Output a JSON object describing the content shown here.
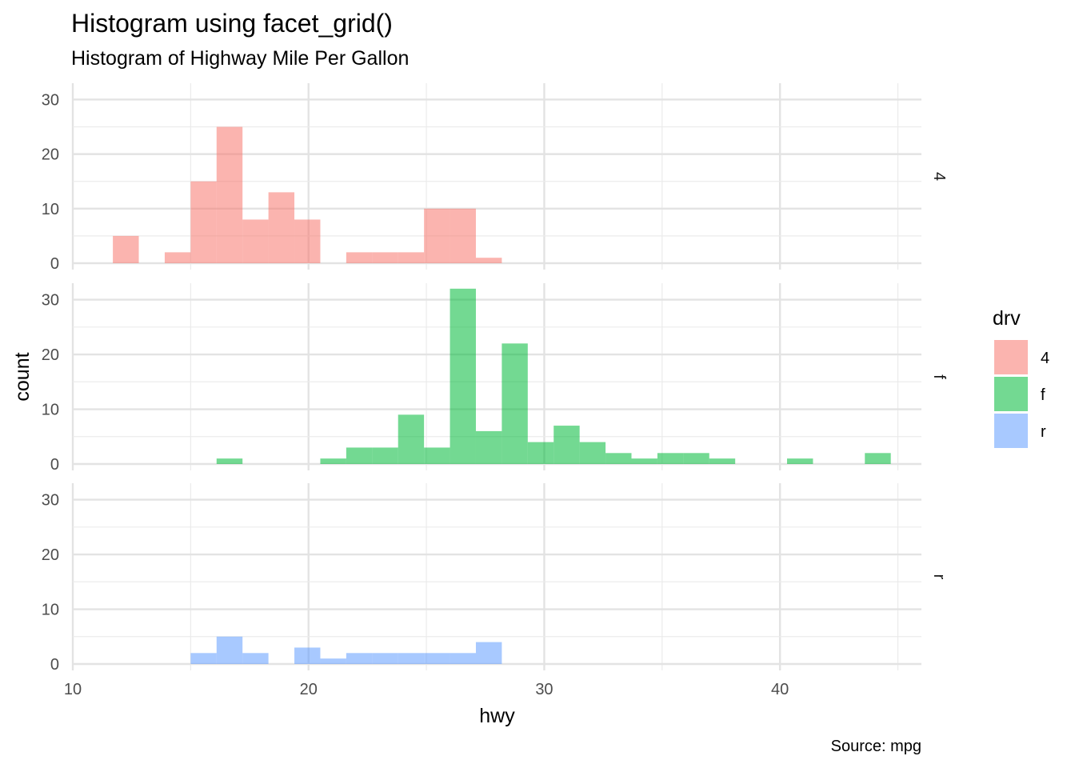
{
  "chart_data": {
    "type": "bar",
    "chart_kind": "histogram",
    "title": "Histogram using facet_grid()",
    "subtitle": "Histogram of Highway Mile Per Gallon",
    "caption": "Source: mpg",
    "xlabel": "hwy",
    "ylabel": "count",
    "xlim": [
      10,
      46
    ],
    "ylim": [
      0,
      33
    ],
    "x_ticks": [
      10,
      20,
      30,
      40
    ],
    "y_ticks": [
      0,
      10,
      20,
      30
    ],
    "grid": true,
    "bin_start": 11.7,
    "bin_width": 1.1,
    "legend": {
      "title": "drv",
      "position": "right",
      "entries": [
        "4",
        "f",
        "r"
      ]
    },
    "facet_by": "drv",
    "series": [
      {
        "name": "4",
        "color": "#F8766D",
        "values": [
          5,
          0,
          2,
          15,
          25,
          8,
          13,
          8,
          0,
          2,
          2,
          2,
          10,
          10,
          1,
          0,
          0,
          0,
          0,
          0,
          0,
          0,
          0,
          0,
          0,
          0,
          0,
          0,
          0,
          0
        ]
      },
      {
        "name": "f",
        "color": "#00BA38",
        "values": [
          0,
          0,
          0,
          0,
          1,
          0,
          0,
          0,
          1,
          3,
          3,
          9,
          3,
          32,
          6,
          22,
          4,
          7,
          4,
          2,
          1,
          2,
          2,
          1,
          0,
          0,
          1,
          0,
          0,
          2
        ]
      },
      {
        "name": "r",
        "color": "#619CFF",
        "values": [
          0,
          0,
          0,
          2,
          5,
          2,
          0,
          3,
          1,
          2,
          2,
          2,
          2,
          2,
          4,
          0,
          0,
          0,
          0,
          0,
          0,
          0,
          0,
          0,
          0,
          0,
          0,
          0,
          0,
          0
        ]
      }
    ]
  }
}
